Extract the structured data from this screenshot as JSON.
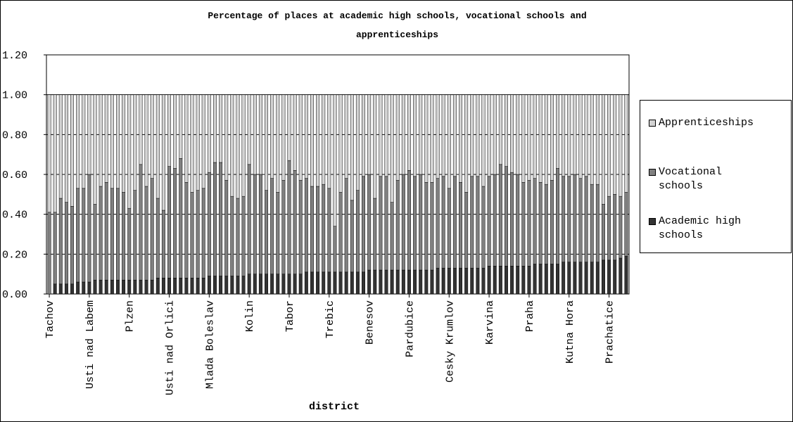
{
  "chart_data": {
    "type": "bar",
    "stacked": true,
    "title_lines": [
      "Percentage of places at academic high schools, vocational schools and",
      "apprenticeships"
    ],
    "xlabel": "district",
    "ylabel": "",
    "ylim": [
      0,
      1.2
    ],
    "yticks": [
      "0.00",
      "0.20",
      "0.40",
      "0.60",
      "0.80",
      "1.00",
      "1.20"
    ],
    "grid": true,
    "legend_position": "right",
    "x_tick_labels": [
      {
        "category_index": 0,
        "label": "Tachov"
      },
      {
        "category_index": 7,
        "label": "Usti nad Labem"
      },
      {
        "category_index": 14,
        "label": "Plzen"
      },
      {
        "category_index": 21,
        "label": "Usti nad Orlici"
      },
      {
        "category_index": 28,
        "label": "Mlada Boleslav"
      },
      {
        "category_index": 35,
        "label": "Kolin"
      },
      {
        "category_index": 42,
        "label": "Tabor"
      },
      {
        "category_index": 49,
        "label": "Trebic"
      },
      {
        "category_index": 56,
        "label": "Benesov"
      },
      {
        "category_index": 63,
        "label": "Pardubice"
      },
      {
        "category_index": 70,
        "label": "Cesky Krumlov"
      },
      {
        "category_index": 77,
        "label": "Karvina"
      },
      {
        "category_index": 84,
        "label": "Praha"
      },
      {
        "category_index": 91,
        "label": "Kutna Hora"
      },
      {
        "category_index": 98,
        "label": "Prachatice"
      }
    ],
    "series": [
      {
        "name": "Academic high schools",
        "color": "#333333",
        "values": [
          0.0,
          0.05,
          0.05,
          0.05,
          0.05,
          0.06,
          0.06,
          0.06,
          0.07,
          0.07,
          0.07,
          0.07,
          0.07,
          0.07,
          0.07,
          0.07,
          0.07,
          0.07,
          0.07,
          0.08,
          0.08,
          0.08,
          0.08,
          0.08,
          0.08,
          0.08,
          0.08,
          0.08,
          0.09,
          0.09,
          0.09,
          0.09,
          0.09,
          0.09,
          0.09,
          0.1,
          0.1,
          0.1,
          0.1,
          0.1,
          0.1,
          0.1,
          0.1,
          0.1,
          0.1,
          0.11,
          0.11,
          0.11,
          0.11,
          0.11,
          0.11,
          0.11,
          0.11,
          0.11,
          0.11,
          0.11,
          0.12,
          0.12,
          0.12,
          0.12,
          0.12,
          0.12,
          0.12,
          0.12,
          0.12,
          0.12,
          0.12,
          0.12,
          0.13,
          0.13,
          0.13,
          0.13,
          0.13,
          0.13,
          0.13,
          0.13,
          0.13,
          0.14,
          0.14,
          0.14,
          0.14,
          0.14,
          0.14,
          0.14,
          0.14,
          0.15,
          0.15,
          0.15,
          0.15,
          0.15,
          0.16,
          0.16,
          0.16,
          0.16,
          0.16,
          0.16,
          0.16,
          0.17,
          0.17,
          0.17,
          0.18,
          0.19
        ]
      },
      {
        "name": "Vocational schools",
        "color": "#808080",
        "values": [
          0.41,
          0.36,
          0.43,
          0.41,
          0.39,
          0.47,
          0.47,
          0.54,
          0.38,
          0.47,
          0.49,
          0.46,
          0.46,
          0.44,
          0.36,
          0.45,
          0.58,
          0.47,
          0.51,
          0.4,
          0.34,
          0.56,
          0.55,
          0.6,
          0.48,
          0.43,
          0.44,
          0.45,
          0.52,
          0.57,
          0.57,
          0.48,
          0.4,
          0.39,
          0.4,
          0.55,
          0.5,
          0.5,
          0.42,
          0.48,
          0.41,
          0.47,
          0.57,
          0.52,
          0.47,
          0.47,
          0.43,
          0.43,
          0.44,
          0.42,
          0.23,
          0.4,
          0.47,
          0.36,
          0.41,
          0.48,
          0.48,
          0.36,
          0.47,
          0.47,
          0.34,
          0.45,
          0.48,
          0.5,
          0.47,
          0.48,
          0.44,
          0.44,
          0.45,
          0.46,
          0.4,
          0.46,
          0.43,
          0.38,
          0.46,
          0.46,
          0.41,
          0.45,
          0.46,
          0.51,
          0.5,
          0.47,
          0.46,
          0.42,
          0.43,
          0.43,
          0.41,
          0.4,
          0.42,
          0.48,
          0.43,
          0.43,
          0.44,
          0.42,
          0.43,
          0.39,
          0.39,
          0.28,
          0.32,
          0.33,
          0.31,
          0.32
        ]
      },
      {
        "name": "Apprenticeships",
        "color": "#d3d3d3",
        "values": [
          0.59,
          0.59,
          0.52,
          0.54,
          0.56,
          0.47,
          0.47,
          0.4,
          0.55,
          0.46,
          0.44,
          0.47,
          0.47,
          0.49,
          0.57,
          0.48,
          0.35,
          0.46,
          0.42,
          0.52,
          0.58,
          0.36,
          0.37,
          0.32,
          0.44,
          0.49,
          0.48,
          0.47,
          0.39,
          0.34,
          0.34,
          0.43,
          0.51,
          0.52,
          0.51,
          0.35,
          0.4,
          0.4,
          0.48,
          0.42,
          0.49,
          0.43,
          0.33,
          0.38,
          0.43,
          0.42,
          0.46,
          0.46,
          0.45,
          0.47,
          0.66,
          0.49,
          0.42,
          0.53,
          0.48,
          0.41,
          0.4,
          0.52,
          0.41,
          0.41,
          0.54,
          0.43,
          0.4,
          0.38,
          0.41,
          0.4,
          0.44,
          0.44,
          0.42,
          0.41,
          0.47,
          0.41,
          0.44,
          0.49,
          0.41,
          0.41,
          0.46,
          0.41,
          0.4,
          0.35,
          0.36,
          0.39,
          0.4,
          0.44,
          0.43,
          0.42,
          0.44,
          0.45,
          0.43,
          0.37,
          0.41,
          0.41,
          0.4,
          0.42,
          0.41,
          0.45,
          0.45,
          0.55,
          0.51,
          0.5,
          0.51,
          0.49
        ]
      }
    ]
  }
}
